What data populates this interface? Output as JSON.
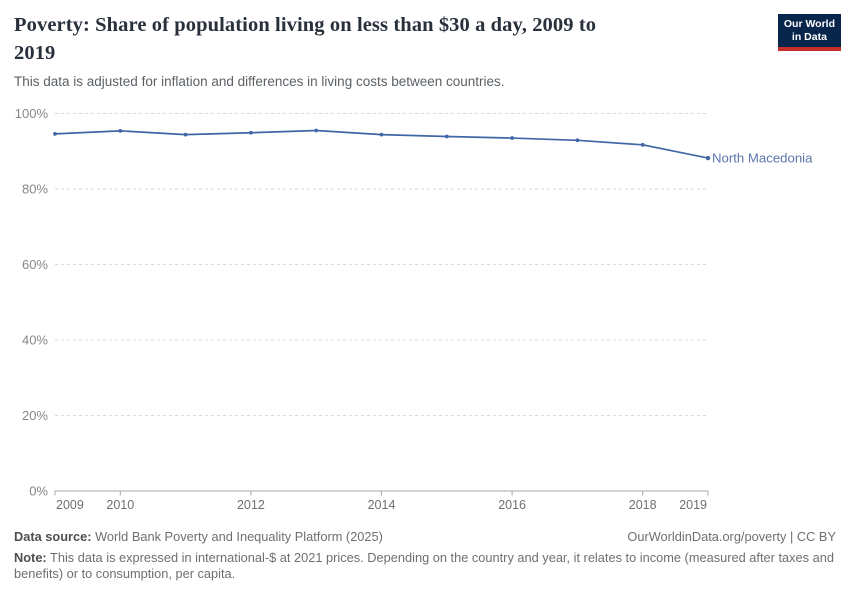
{
  "header": {
    "title_lines": [
      "Poverty: Share of population living on less than $30 a day, 2009 to",
      "2019"
    ],
    "subtitle": "This data is adjusted for inflation and differences in living costs between countries.",
    "logo": {
      "line1": "Our World",
      "line2": "in Data"
    }
  },
  "chart_data": {
    "type": "line",
    "title": "Poverty: Share of population living on less than $30 a day, 2009 to 2019",
    "x": [
      2009,
      2010,
      2011,
      2012,
      2013,
      2014,
      2015,
      2016,
      2017,
      2018,
      2019
    ],
    "series": [
      {
        "name": "North Macedonia",
        "color": "#4166a5",
        "label_color": "#5b76ac",
        "values": [
          94.6,
          95.4,
          94.4,
          94.9,
          95.5,
          94.4,
          93.9,
          93.5,
          92.9,
          91.7,
          88.2
        ]
      }
    ],
    "xlim": [
      2009,
      2019
    ],
    "ylim": [
      0,
      100
    ],
    "y_ticks": [
      0,
      20,
      40,
      60,
      80,
      100
    ],
    "y_tick_suffix": "%",
    "x_tick_years": [
      2009,
      2010,
      2012,
      2014,
      2016,
      2018,
      2019
    ],
    "grid": "horizontal-dashed",
    "legend_position": "line-end-label"
  },
  "colors": {
    "grid": "#d9d9d9",
    "axis": "#a8a8a8",
    "y_label": "#878787",
    "x_label": "#707070",
    "logo_bg": "#08254c",
    "logo_bar": "#c7302a"
  },
  "footer": {
    "source_label": "Data source:",
    "source_text": " World Bank Poverty and Inequality Platform (2025)",
    "attribution": "OurWorldinData.org/poverty | CC BY",
    "note_label": "Note:",
    "note_text": " This data is expressed in international-$ at 2021 prices. Depending on the country and year, it relates to income (measured after taxes and benefits) or to consumption, per capita."
  }
}
